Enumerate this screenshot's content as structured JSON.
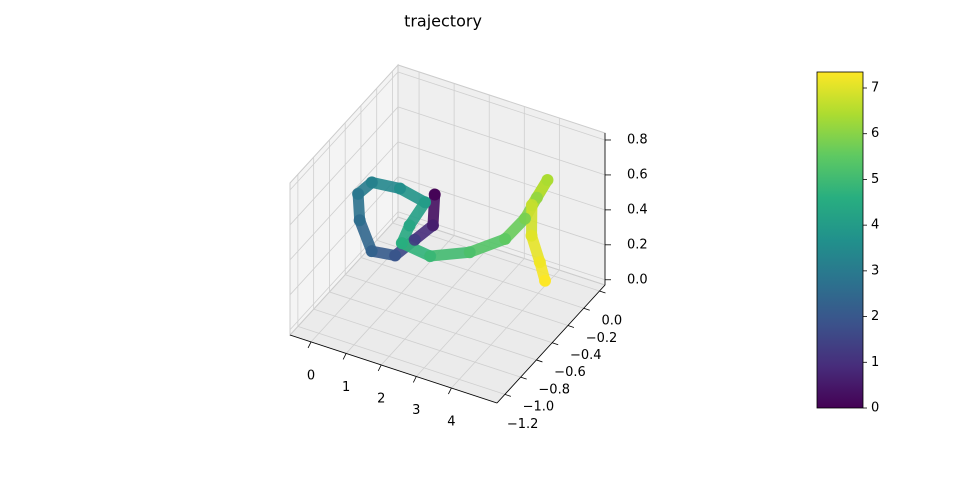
{
  "chart_data": {
    "type": "scatter3d",
    "title": "trajectory",
    "cmap": "viridis",
    "series": [
      {
        "x": [
          1.75,
          1.7,
          1.45,
          1.16,
          0.56,
          0.15,
          0.06,
          0.34,
          0.94,
          1.52,
          1.19,
          1.06,
          1.8,
          2.59,
          3.24,
          3.58,
          3.74,
          3.93,
          3.62,
          3.61,
          3.87,
          4.04
        ],
        "y": [
          -0.51,
          -0.51,
          -0.63,
          -0.75,
          -0.78,
          -0.75,
          -0.73,
          -0.68,
          -0.59,
          -0.53,
          -0.58,
          -0.62,
          -0.59,
          -0.44,
          -0.28,
          -0.18,
          -0.1,
          -0.05,
          -0.11,
          -0.11,
          -0.12,
          -0.13
        ],
        "z": [
          0.54,
          0.36,
          0.32,
          0.27,
          0.27,
          0.405,
          0.54,
          0.6,
          0.56,
          0.49,
          0.36,
          0.27,
          0.23,
          0.23,
          0.27,
          0.36,
          0.45,
          0.54,
          0.405,
          0.23,
          0.1,
          0.01
        ],
        "c": [
          0,
          0.6,
          1.3,
          1.9,
          2.3,
          2.6,
          2.9,
          3.2,
          3.6,
          4.0,
          4.3,
          4.6,
          4.9,
          5.2,
          5.5,
          5.8,
          6.1,
          6.4,
          6.7,
          7.0,
          7.2,
          7.35
        ]
      }
    ],
    "xlim": [
      -0.6,
      5.3
    ],
    "xticks": [
      0,
      1,
      2,
      3,
      4
    ],
    "ylim": [
      -1.3,
      0.07
    ],
    "yticks": [
      {
        "value": -1.2,
        "label": "−1.2"
      },
      {
        "value": -1.0,
        "label": "−1.0"
      },
      {
        "value": -0.8,
        "label": "−0.8"
      },
      {
        "value": -0.6,
        "label": "−0.6"
      },
      {
        "value": -0.4,
        "label": "−0.4"
      },
      {
        "value": -0.2,
        "label": "−0.2"
      },
      {
        "value": 0,
        "label": "0.0"
      }
    ],
    "zlim": [
      -0.03,
      0.84
    ],
    "zticks": [
      {
        "value": 0,
        "label": "0.0"
      },
      {
        "value": 0.2,
        "label": "0.2"
      },
      {
        "value": 0.4,
        "label": "0.4"
      },
      {
        "value": 0.6,
        "label": "0.6"
      },
      {
        "value": 0.8,
        "label": "0.8"
      }
    ],
    "clim": [
      0,
      7.35
    ],
    "cticks": [
      0,
      1,
      2,
      3,
      4,
      5,
      6,
      7
    ],
    "grid": true
  }
}
